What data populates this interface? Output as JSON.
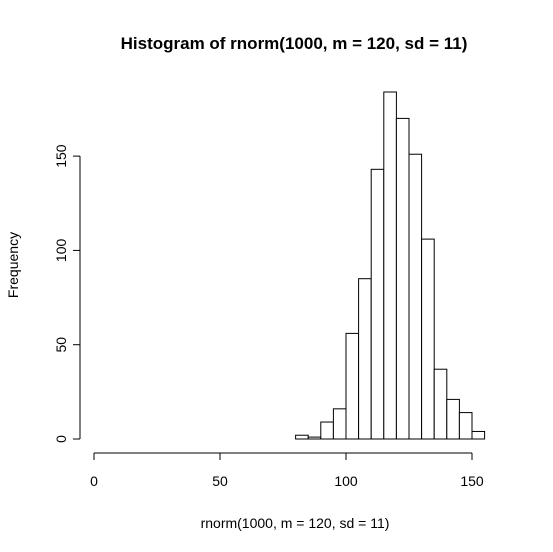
{
  "chart_data": {
    "type": "bar",
    "title": "Histogram of rnorm(1000, m = 120, sd = 11)",
    "xlabel": "rnorm(1000, m = 120, sd = 11)",
    "ylabel": "Frequency",
    "xlim": [
      0,
      155
    ],
    "ylim": [
      0,
      185
    ],
    "x_ticks": [
      0,
      50,
      100,
      150
    ],
    "y_ticks": [
      0,
      50,
      100,
      150
    ],
    "bin_width": 5,
    "bins": [
      {
        "x0": 80,
        "x1": 85,
        "count": 2
      },
      {
        "x0": 85,
        "x1": 90,
        "count": 1
      },
      {
        "x0": 90,
        "x1": 95,
        "count": 9
      },
      {
        "x0": 95,
        "x1": 100,
        "count": 16
      },
      {
        "x0": 100,
        "x1": 105,
        "count": 56
      },
      {
        "x0": 105,
        "x1": 110,
        "count": 85
      },
      {
        "x0": 110,
        "x1": 115,
        "count": 143
      },
      {
        "x0": 115,
        "x1": 120,
        "count": 184
      },
      {
        "x0": 120,
        "x1": 125,
        "count": 170
      },
      {
        "x0": 125,
        "x1": 130,
        "count": 151
      },
      {
        "x0": 130,
        "x1": 135,
        "count": 106
      },
      {
        "x0": 135,
        "x1": 140,
        "count": 37
      },
      {
        "x0": 140,
        "x1": 145,
        "count": 21
      },
      {
        "x0": 145,
        "x1": 150,
        "count": 14
      },
      {
        "x0": 150,
        "x1": 155,
        "count": 4
      }
    ]
  }
}
